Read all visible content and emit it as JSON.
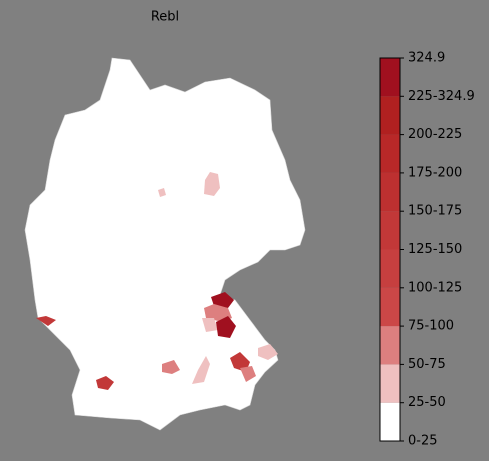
{
  "title": "Rebl",
  "colorbar": {
    "ticks": [
      "0-25",
      "25-50",
      "50-75",
      "75-100",
      "100-125",
      "125-150",
      "150-175",
      "175-200",
      "200-225",
      "225-324.9",
      "324.9"
    ],
    "colors": [
      "#ffffff",
      "#efc0c0",
      "#dd7f7f",
      "#cb4747",
      "#c63f3f",
      "#c23838",
      "#bd3030",
      "#b82828",
      "#b02020",
      "#a0101f"
    ]
  }
}
